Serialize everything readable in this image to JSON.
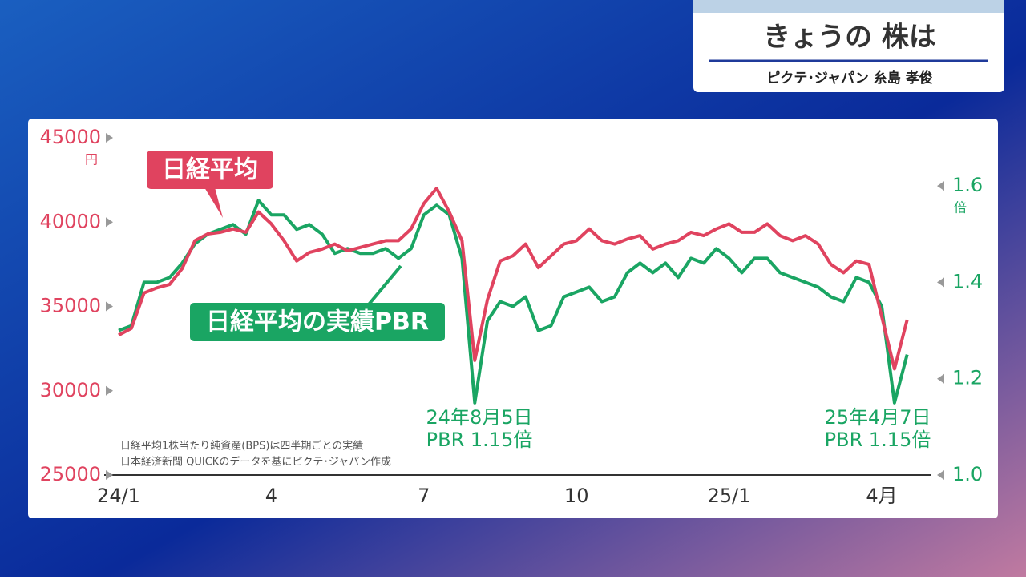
{
  "header": {
    "title": "きょうの 株は",
    "subtitle": "ピクテ･ジャパン 糸島 孝俊"
  },
  "chart_data": {
    "type": "line",
    "categories": [
      "24/1",
      null,
      null,
      null,
      null,
      null,
      null,
      null,
      null,
      null,
      null,
      null,
      "4",
      null,
      null,
      null,
      null,
      null,
      null,
      null,
      null,
      null,
      null,
      null,
      "7",
      null,
      null,
      null,
      null,
      null,
      null,
      null,
      null,
      null,
      null,
      null,
      "10",
      null,
      null,
      null,
      null,
      null,
      null,
      null,
      null,
      null,
      null,
      null,
      "25/1",
      null,
      null,
      null,
      null,
      null,
      null,
      null,
      null,
      null,
      null,
      null,
      "4月",
      null,
      null
    ],
    "series": [
      {
        "name": "日経平均",
        "color": "#e0435f",
        "values": [
          33300,
          33700,
          35800,
          36100,
          36300,
          37250,
          38900,
          39300,
          39400,
          39600,
          39400,
          40600,
          39900,
          38900,
          37700,
          38200,
          38400,
          38700,
          38300,
          38500,
          38700,
          38900,
          38900,
          39600,
          41100,
          42000,
          40600,
          38900,
          31800,
          35400,
          37700,
          38000,
          38700,
          37300,
          38000,
          38700,
          38900,
          39600,
          38900,
          38700,
          39000,
          39200,
          38400,
          38700,
          38900,
          39400,
          39200,
          39600,
          39900,
          39400,
          39400,
          39900,
          39200,
          38900,
          39200,
          38700,
          37500,
          37000,
          37700,
          37500,
          34400,
          31300,
          34200
        ]
      },
      {
        "name": "日経平均の実績PBR",
        "color": "#1aa563",
        "axis": "y2",
        "values": [
          1.3,
          1.31,
          1.4,
          1.4,
          1.41,
          1.44,
          1.48,
          1.5,
          1.51,
          1.52,
          1.5,
          1.57,
          1.54,
          1.54,
          1.51,
          1.52,
          1.5,
          1.46,
          1.47,
          1.46,
          1.46,
          1.47,
          1.45,
          1.47,
          1.54,
          1.56,
          1.54,
          1.45,
          1.15,
          1.32,
          1.36,
          1.35,
          1.37,
          1.3,
          1.31,
          1.37,
          1.38,
          1.39,
          1.36,
          1.37,
          1.42,
          1.44,
          1.42,
          1.44,
          1.41,
          1.45,
          1.44,
          1.47,
          1.45,
          1.42,
          1.45,
          1.45,
          1.42,
          1.41,
          1.4,
          1.39,
          1.37,
          1.36,
          1.41,
          1.4,
          1.35,
          1.15,
          1.25
        ]
      }
    ],
    "ylim": [
      25000,
      45000
    ],
    "yticks": [
      25000,
      30000,
      35000,
      40000,
      45000
    ],
    "y_unit": "円",
    "y2lim": [
      1.0,
      1.7
    ],
    "y2ticks": [
      {
        "value": 1.0,
        "label": "1.0"
      },
      1.2,
      1.4,
      1.6
    ],
    "y2_unit": "倍",
    "annotations": [
      {
        "lines": [
          "24年8月5日",
          "PBR 1.15倍"
        ]
      },
      {
        "lines": [
          "25年4月7日",
          "PBR 1.15倍"
        ]
      }
    ],
    "notes": [
      "日経平均1株当たり純資産(BPS)は四半期ごとの実績",
      "日本経済新聞 QUICKのデータを基にピクテ･ジャパン作成"
    ]
  }
}
